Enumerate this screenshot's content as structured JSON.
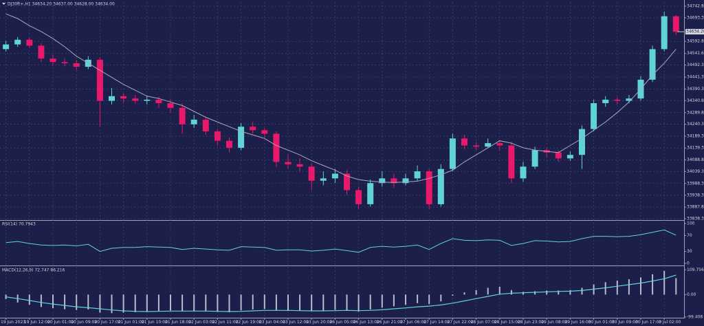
{
  "chart_data": [
    {
      "type": "candlestick",
      "title": "DJ30ft+,H1 34634.20 34637.00 34628.00 34634.00",
      "open": [
        34560,
        34580,
        34600,
        34575,
        34520,
        34505,
        34500,
        34485,
        34515,
        34340,
        34360,
        34350,
        34340,
        34345,
        34330,
        34310,
        34240,
        34260,
        34210,
        34170,
        34140,
        34230,
        34215,
        34200,
        34080,
        34070,
        34060,
        34000,
        34010,
        34030,
        33960,
        33900,
        33990,
        34010,
        33990,
        34010,
        34040,
        33900,
        34050,
        34180,
        34150,
        34145,
        34160,
        34150,
        34010,
        34060,
        34130,
        34120,
        34095,
        34110,
        34220,
        34330,
        34345,
        34340,
        34350,
        34430,
        34560,
        34700
      ],
      "high": [
        34595,
        34612,
        34608,
        34585,
        34535,
        34522,
        34515,
        34530,
        34525,
        34395,
        34372,
        34365,
        34362,
        34358,
        34345,
        34330,
        34280,
        34270,
        34220,
        34185,
        34245,
        34250,
        34225,
        34210,
        34110,
        34095,
        34075,
        34040,
        34050,
        34045,
        33975,
        34005,
        34040,
        34030,
        34030,
        34065,
        34050,
        34070,
        34200,
        34195,
        34165,
        34180,
        34175,
        34165,
        34080,
        34145,
        34140,
        34130,
        34125,
        34235,
        34345,
        34360,
        34355,
        34365,
        34445,
        34575,
        34720,
        34705
      ],
      "low": [
        34550,
        34570,
        34565,
        34505,
        34490,
        34488,
        34470,
        34475,
        34230,
        34325,
        34330,
        34328,
        34325,
        34310,
        34290,
        34200,
        34225,
        34195,
        34150,
        34120,
        34130,
        34200,
        34180,
        34060,
        34050,
        34040,
        33960,
        33980,
        33990,
        33940,
        33880,
        33890,
        33975,
        33970,
        33980,
        34000,
        33880,
        33890,
        34040,
        34135,
        34130,
        34140,
        34130,
        33990,
        33995,
        34050,
        34100,
        34080,
        34085,
        34050,
        34210,
        34315,
        34325,
        34330,
        34340,
        34420,
        34550,
        34620
      ],
      "close": [
        34580,
        34600,
        34575,
        34520,
        34505,
        34500,
        34485,
        34515,
        34340,
        34360,
        34350,
        34340,
        34345,
        34330,
        34310,
        34240,
        34260,
        34210,
        34170,
        34140,
        34230,
        34215,
        34200,
        34080,
        34070,
        34060,
        34000,
        34010,
        34030,
        33960,
        33900,
        33990,
        34010,
        33990,
        34010,
        34040,
        33900,
        34050,
        34180,
        34150,
        34145,
        34160,
        34150,
        34010,
        34060,
        34130,
        34120,
        34095,
        34110,
        34220,
        34330,
        34345,
        34340,
        34350,
        34430,
        34560,
        34700,
        34634
      ],
      "up_color": "#5fd3d8",
      "down_color": "#e8196b",
      "ma": {
        "color": "#a9a9b8",
        "values": [
          34710,
          34690,
          34660,
          34635,
          34605,
          34570,
          34530,
          34500,
          34470,
          34440,
          34410,
          34385,
          34360,
          34350,
          34335,
          34320,
          34295,
          34270,
          34250,
          34230,
          34210,
          34195,
          34180,
          34150,
          34130,
          34110,
          34085,
          34065,
          34045,
          34020,
          34005,
          33998,
          33994,
          33993,
          33995,
          33998,
          34010,
          34025,
          34045,
          34080,
          34110,
          34140,
          34170,
          34160,
          34140,
          34130,
          34125,
          34120,
          34150,
          34180,
          34215,
          34250,
          34290,
          34335,
          34390,
          34450,
          34500,
          34560
        ]
      },
      "last_price": {
        "value": 34634.2,
        "label": "34634.20"
      },
      "ylim": [
        33838.3,
        34742.8
      ],
      "yticks": [
        {
          "value": 33838.3,
          "label": "33838.30"
        },
        {
          "value": 33887.8,
          "label": "33887.80"
        },
        {
          "value": 33938.3,
          "label": "33938.30"
        },
        {
          "value": 33988.3,
          "label": "33988.30"
        },
        {
          "value": 34039.3,
          "label": "34039.30"
        },
        {
          "value": 34088.8,
          "label": "34088.80"
        },
        {
          "value": 34139.3,
          "label": "34139.30"
        },
        {
          "value": 34189.3,
          "label": "34189.30"
        },
        {
          "value": 34240.3,
          "label": "34240.30"
        },
        {
          "value": 34289.8,
          "label": "34289.80"
        },
        {
          "value": 34340.8,
          "label": "34340.80"
        },
        {
          "value": 34390.3,
          "label": "34390.30"
        },
        {
          "value": 34441.3,
          "label": "34441.30"
        },
        {
          "value": 34492.3,
          "label": "34492.30"
        },
        {
          "value": 34541.6,
          "label": "34541.60"
        },
        {
          "value": 34592.8,
          "label": "34592.80"
        },
        {
          "value": 34693.3,
          "label": "34693.30"
        },
        {
          "value": 34742.8,
          "label": "34742.80"
        }
      ],
      "xticks": [
        {
          "value": 0,
          "label": "19 Jun 2023"
        },
        {
          "value": 2,
          "label": "19 Jun 12:00"
        },
        {
          "value": 4,
          "label": "20 Jun 01:00"
        },
        {
          "value": 6,
          "label": "20 Jun 09:00"
        },
        {
          "value": 8,
          "label": "20 Jun 17:00"
        },
        {
          "value": 10,
          "label": "21 Jun 01:00"
        },
        {
          "value": 12,
          "label": "21 Jun 10:00"
        },
        {
          "value": 14,
          "label": "21 Jun 18:00"
        },
        {
          "value": 16,
          "label": "22 Jun 03:00"
        },
        {
          "value": 18,
          "label": "22 Jun 11:00"
        },
        {
          "value": 20,
          "label": "22 Jun 19:00"
        },
        {
          "value": 22,
          "label": "23 Jun 04:00"
        },
        {
          "value": 24,
          "label": "23 Jun 12:00"
        },
        {
          "value": 26,
          "label": "23 Jun 20:00"
        },
        {
          "value": 28,
          "label": "26 Jun 05:00"
        },
        {
          "value": 30,
          "label": "26 Jun 13:00"
        },
        {
          "value": 32,
          "label": "26 Jun 21:00"
        },
        {
          "value": 34,
          "label": "27 Jun 06:00"
        },
        {
          "value": 36,
          "label": "27 Jun 14:00"
        },
        {
          "value": 38,
          "label": "27 Jun 22:00"
        },
        {
          "value": 40,
          "label": "28 Jun 07:00"
        },
        {
          "value": 42,
          "label": "28 Jun 15:00"
        },
        {
          "value": 44,
          "label": "28 Jun 23:00"
        },
        {
          "value": 46,
          "label": "29 Jun 08:00"
        },
        {
          "value": 48,
          "label": "29 Jun 16:00"
        },
        {
          "value": 50,
          "label": "30 Jun 01:00"
        },
        {
          "value": 52,
          "label": "30 Jun 09:00"
        },
        {
          "value": 54,
          "label": "30 Jun 17:00"
        },
        {
          "value": 56,
          "label": "3 Jul 02:00"
        }
      ],
      "grid": true
    },
    {
      "type": "line",
      "title": "RSI(14) 70.7943",
      "color": "#5fd3d8",
      "values": [
        52,
        55,
        50,
        46,
        45,
        46,
        44,
        48,
        30,
        38,
        40,
        40,
        42,
        41,
        40,
        35,
        38,
        36,
        34,
        33,
        42,
        41,
        40,
        33,
        34,
        34,
        31,
        33,
        36,
        32,
        28,
        40,
        43,
        41,
        43,
        46,
        35,
        50,
        62,
        58,
        57,
        59,
        58,
        45,
        50,
        57,
        56,
        54,
        55,
        62,
        68,
        68,
        67,
        68,
        72,
        78,
        84,
        70.7943
      ],
      "ylim": [
        0,
        100
      ],
      "yticks": [
        0,
        30,
        70,
        100
      ],
      "grid": false
    },
    {
      "type": "bar",
      "title": "MACD(12,26,9) 72.747 86.216",
      "color": "#b9bccb",
      "values": [
        -20,
        -35,
        -45,
        -55,
        -60,
        -65,
        -68,
        -66,
        -80,
        -82,
        -80,
        -78,
        -75,
        -72,
        -70,
        -74,
        -73,
        -74,
        -76,
        -78,
        -70,
        -66,
        -64,
        -70,
        -72,
        -72,
        -74,
        -72,
        -68,
        -70,
        -75,
        -66,
        -58,
        -52,
        -45,
        -38,
        -42,
        -30,
        -5,
        10,
        20,
        30,
        35,
        20,
        12,
        15,
        18,
        18,
        20,
        30,
        45,
        55,
        62,
        68,
        76,
        90,
        105,
        72.747
      ],
      "signal": {
        "color": "#5fd3d8",
        "values": [
          -10,
          -18,
          -26,
          -35,
          -42,
          -48,
          -54,
          -58,
          -63,
          -68,
          -72,
          -74,
          -75,
          -74,
          -73,
          -73,
          -73,
          -73,
          -74,
          -75,
          -74,
          -72,
          -70,
          -70,
          -70,
          -71,
          -72,
          -72,
          -71,
          -70,
          -71,
          -70,
          -67,
          -63,
          -59,
          -54,
          -51,
          -46,
          -38,
          -28,
          -18,
          -8,
          2,
          6,
          8,
          10,
          12,
          14,
          15,
          18,
          24,
          30,
          37,
          44,
          51,
          60,
          70,
          86.216
        ]
      },
      "ylim": [
        -99.408,
        119.7
      ],
      "yticks": [
        -99.408,
        {
          "value": 0,
          "label": "0.00"
        },
        109.756
      ],
      "grid": false
    }
  ]
}
